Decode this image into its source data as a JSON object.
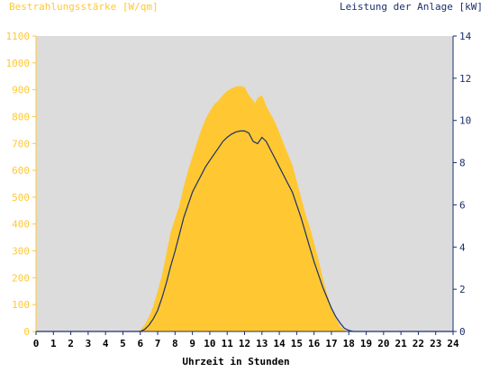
{
  "chart_data": {
    "type": "area",
    "title_left": "Bestrahlungsstärke [W/qm]",
    "title_right": "Leistung der Anlage [kW]",
    "xlabel": "Uhrzeit in Stunden",
    "xlim": [
      0,
      24
    ],
    "ylim_left": [
      0,
      1100
    ],
    "ylim_right": [
      0,
      14
    ],
    "x_ticks": [
      "0",
      "1",
      "2",
      "3",
      "4",
      "5",
      "6",
      "7",
      "8",
      "9",
      "10",
      "11",
      "12",
      "13",
      "14",
      "15",
      "16",
      "17",
      "18",
      "19",
      "20",
      "21",
      "22",
      "23",
      "24"
    ],
    "y_left_ticks": [
      "0",
      "100",
      "200",
      "300",
      "400",
      "500",
      "600",
      "700",
      "800",
      "900",
      "1000",
      "1100"
    ],
    "y_right_ticks": [
      "0",
      "2",
      "4",
      "6",
      "8",
      "10",
      "12",
      "14"
    ],
    "grid": false,
    "series": [
      {
        "axis": "left",
        "type": "area",
        "x": [
          0,
          5.8,
          6.0,
          6.25,
          6.5,
          6.75,
          7.0,
          7.25,
          7.5,
          7.75,
          8.0,
          8.25,
          8.5,
          8.75,
          9.0,
          9.25,
          9.5,
          9.75,
          10.0,
          10.25,
          10.5,
          10.75,
          11.0,
          11.25,
          11.5,
          11.75,
          12.0,
          12.25,
          12.5,
          12.6,
          12.75,
          13.0,
          13.25,
          13.5,
          13.75,
          14.0,
          14.25,
          14.5,
          14.75,
          15.0,
          15.25,
          15.5,
          15.75,
          16.0,
          16.25,
          16.5,
          16.75,
          17.0,
          17.25,
          17.5,
          17.75,
          18.0,
          18.25,
          18.5,
          18.75,
          19.0,
          19.2,
          19.5,
          24
        ],
        "values": [
          0,
          0,
          5,
          25,
          55,
          95,
          150,
          210,
          290,
          370,
          420,
          470,
          540,
          600,
          650,
          700,
          750,
          790,
          820,
          845,
          860,
          880,
          895,
          905,
          912,
          914,
          910,
          880,
          860,
          850,
          870,
          880,
          840,
          810,
          780,
          740,
          700,
          660,
          620,
          560,
          500,
          440,
          390,
          330,
          270,
          200,
          140,
          90,
          50,
          20,
          5,
          0,
          0,
          0,
          0,
          0,
          0,
          0,
          0
        ]
      },
      {
        "axis": "right",
        "type": "line",
        "x": [
          0,
          6.0,
          6.25,
          6.5,
          6.75,
          7.0,
          7.25,
          7.5,
          7.75,
          8.0,
          8.25,
          8.5,
          8.75,
          9.0,
          9.25,
          9.5,
          9.75,
          10.0,
          10.25,
          10.5,
          10.75,
          11.0,
          11.25,
          11.5,
          11.75,
          12.0,
          12.25,
          12.5,
          12.75,
          13.0,
          13.25,
          13.5,
          13.75,
          14.0,
          14.25,
          14.5,
          14.75,
          15.0,
          15.25,
          15.5,
          15.75,
          16.0,
          16.25,
          16.5,
          16.75,
          17.0,
          17.25,
          17.5,
          17.75,
          18.0,
          18.25,
          18.5,
          18.75,
          19.0,
          19.25,
          24
        ],
        "values": [
          0,
          0,
          0.1,
          0.3,
          0.6,
          1.0,
          1.6,
          2.3,
          3.1,
          3.8,
          4.6,
          5.4,
          6.0,
          6.6,
          7.0,
          7.4,
          7.8,
          8.1,
          8.4,
          8.7,
          9.0,
          9.2,
          9.35,
          9.45,
          9.5,
          9.5,
          9.4,
          9.0,
          8.9,
          9.2,
          9.0,
          8.6,
          8.2,
          7.8,
          7.4,
          7.0,
          6.6,
          6.0,
          5.4,
          4.7,
          4.0,
          3.3,
          2.7,
          2.1,
          1.6,
          1.1,
          0.7,
          0.4,
          0.15,
          0.05,
          0,
          0,
          0,
          0,
          0,
          0
        ]
      }
    ],
    "colors": {
      "plot_background": "#DCDCDC",
      "area_fill": "#FFC832",
      "line": "#1A2F6E",
      "left_axis": "#FFC832",
      "right_axis": "#1A2F6E",
      "x_axis": "#1A2F6E"
    }
  }
}
